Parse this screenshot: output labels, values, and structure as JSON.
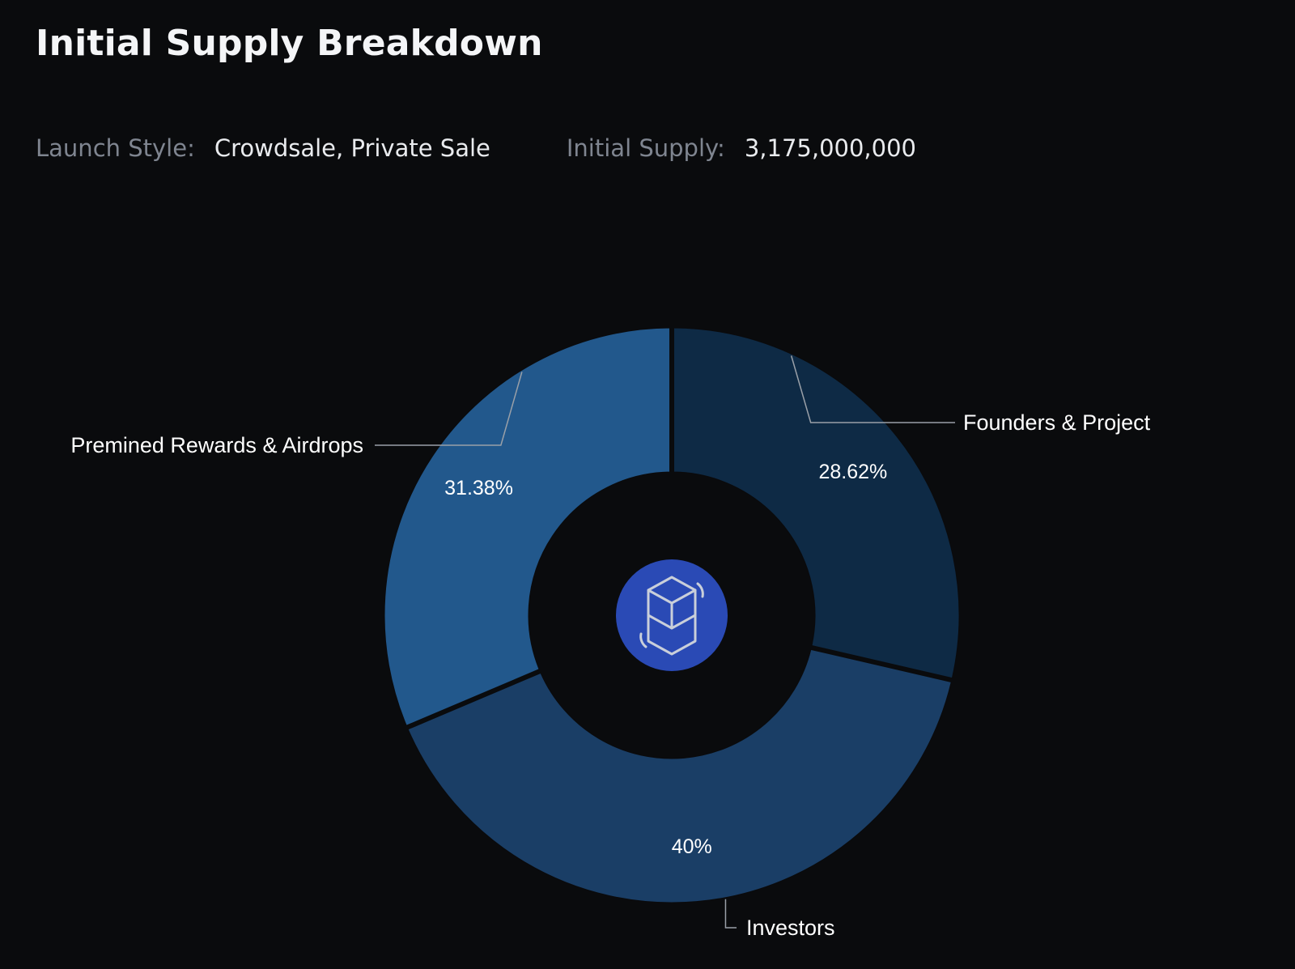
{
  "page": {
    "title": "Initial Supply Breakdown"
  },
  "info": {
    "launch_style_label": "Launch Style:",
    "launch_style_value": "Crowdsale, Private Sale",
    "initial_supply_label": "Initial Supply:",
    "initial_supply_value": "3,175,000,000"
  },
  "center_icon": "fantom-logo-icon",
  "chart_data": {
    "type": "pie",
    "donut": true,
    "categories": [
      "Founders & Project",
      "Investors",
      "Premined Rewards & Airdrops"
    ],
    "values": [
      28.62,
      40,
      31.38
    ],
    "value_labels": [
      "28.62%",
      "40%",
      "31.38%"
    ],
    "colors": [
      "#0e2a45",
      "#1a3e66",
      "#22588c"
    ],
    "center_color": "#2a4ab5",
    "title": "",
    "legend": "none"
  }
}
